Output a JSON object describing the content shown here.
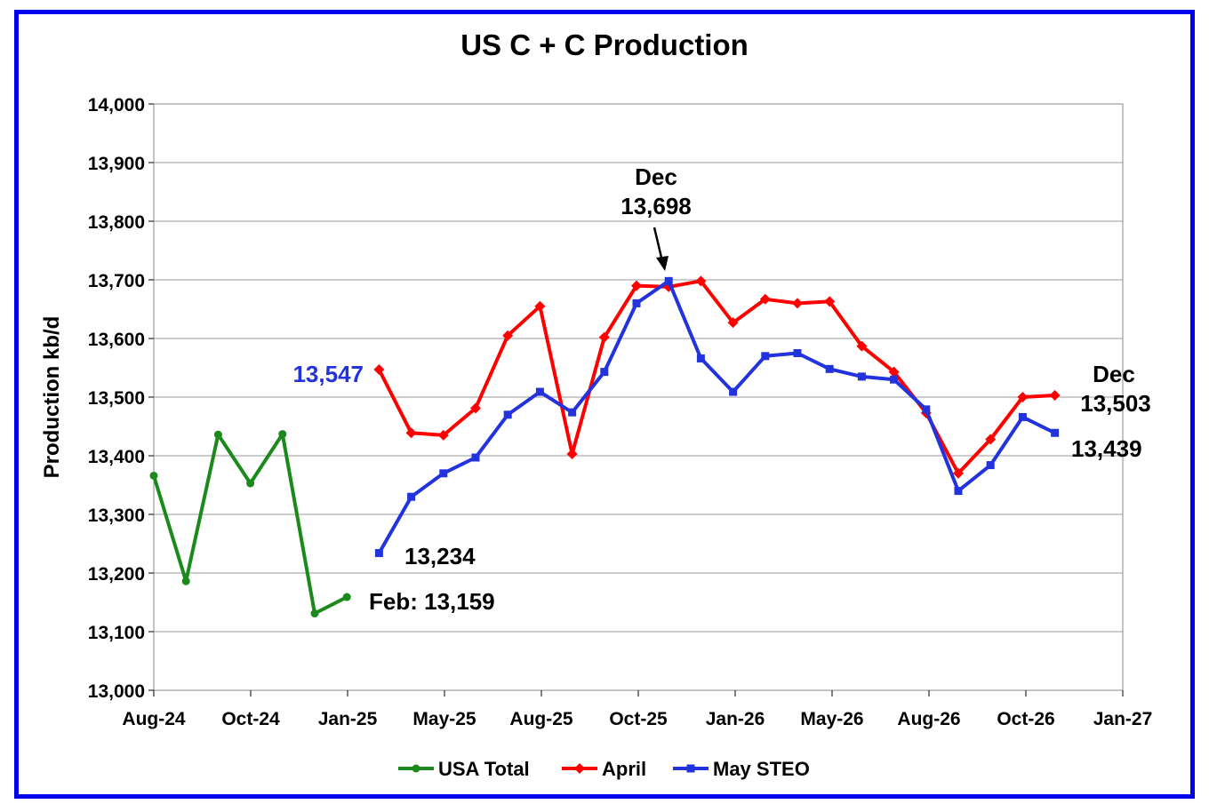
{
  "chart_data": {
    "type": "line",
    "title": "US C + C Production",
    "ylabel": "Production kb/d",
    "xlabel": "",
    "ylim": [
      13000,
      14000
    ],
    "yticks": [
      "13,000",
      "13,100",
      "13,200",
      "13,300",
      "13,400",
      "13,500",
      "13,600",
      "13,700",
      "13,800",
      "13,900",
      "14,000"
    ],
    "xticks": [
      "Aug-24",
      "Oct-24",
      "Jan-25",
      "May-25",
      "Aug-25",
      "Oct-25",
      "Jan-26",
      "May-26",
      "Aug-26",
      "Oct-26",
      "Jan-27"
    ],
    "grid": true,
    "legend_position": "bottom",
    "series": [
      {
        "name": "USA Total",
        "color": "#1a8a1a",
        "marker": "circle",
        "start_month": "2024-08",
        "values": [
          13366,
          13186,
          13436,
          13353,
          13437,
          13131,
          13159
        ]
      },
      {
        "name": "April",
        "color": "#ff0000",
        "marker": "diamond",
        "start_month": "2025-03",
        "values": [
          13547,
          13439,
          13435,
          13481,
          13605,
          13655,
          13403,
          13602,
          13690,
          13688,
          13698,
          13627,
          13667,
          13660,
          13663,
          13587,
          13543,
          13473,
          13370,
          13428,
          13500,
          13503
        ]
      },
      {
        "name": "May STEO",
        "color": "#2233dd",
        "marker": "square",
        "start_month": "2025-03",
        "values": [
          13234,
          13330,
          13370,
          13397,
          13470,
          13509,
          13474,
          13543,
          13660,
          13698,
          13566,
          13509,
          13570,
          13575,
          13548,
          13535,
          13530,
          13479,
          13340,
          13384,
          13466,
          13439
        ]
      }
    ],
    "annotations": {
      "may_start": "13,547",
      "steo_start": "13,234",
      "feb": "Feb: 13,159",
      "peak_month": "Dec",
      "peak_value": "13,698",
      "end_month": "Dec",
      "end_april": "13,503",
      "end_steo": "13,439"
    }
  }
}
